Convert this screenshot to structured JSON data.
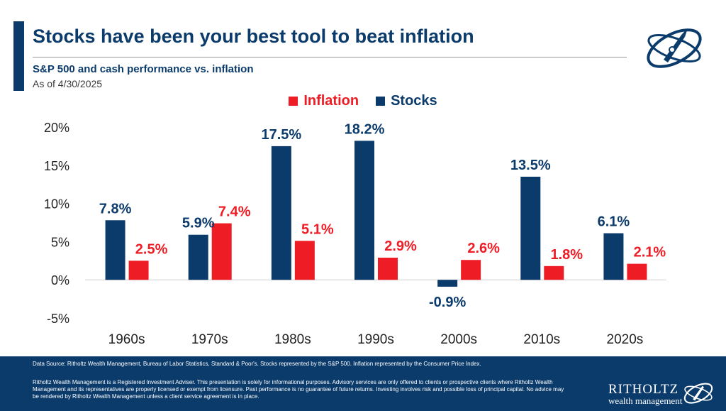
{
  "header": {
    "title": "Stocks have been your best tool to beat inflation",
    "subtitle": "S&P 500 and cash performance vs. inflation",
    "as_of": "As of 4/30/2025"
  },
  "colors": {
    "stocks": "#0b3b6b",
    "inflation": "#ee1c24",
    "navy": "#0b3b6b"
  },
  "chart_data": {
    "type": "bar",
    "categories": [
      "1960s",
      "1970s",
      "1980s",
      "1990s",
      "2000s",
      "2010s",
      "2020s"
    ],
    "series": [
      {
        "name": "Stocks",
        "values": [
          7.8,
          5.9,
          17.5,
          18.2,
          -0.9,
          13.5,
          6.1
        ],
        "labels": [
          "7.8%",
          "5.9%",
          "17.5%",
          "18.2%",
          "-0.9%",
          "13.5%",
          "6.1%"
        ]
      },
      {
        "name": "Inflation",
        "values": [
          2.5,
          7.4,
          5.1,
          2.9,
          2.6,
          1.8,
          2.1
        ],
        "labels": [
          "2.5%",
          "7.4%",
          "5.1%",
          "2.9%",
          "2.6%",
          "1.8%",
          "2.1%"
        ]
      }
    ],
    "legend": [
      "Inflation",
      "Stocks"
    ],
    "legend_position": "top-center",
    "ylim": [
      -5,
      20
    ],
    "yticks": [
      20,
      15,
      10,
      5,
      0,
      -5
    ],
    "ytick_labels": [
      "20%",
      "15%",
      "10%",
      "5%",
      "0%",
      "-5%"
    ],
    "grid": false
  },
  "footer": {
    "source": "Data Source: Ritholtz Wealth Management, Bureau of Labor Statistics, Standard & Poor's. Stocks represented by the S&P 500. Inflation represented by the Consumer Price Index.",
    "disclaimer": "Ritholtz Wealth Management is a Registered Investment Adviser. This presentation is solely for informational purposes. Advisory services are only offered to clients or prospective clients where Ritholtz Wealth Management and its representatives are properly licensed or exempt from licensure. Past performance is no guarantee of future returns. Investing involves risk and possible loss of principal capital. No advice may be rendered by Ritholtz Wealth Management unless a client service agreement is in place.",
    "brand_name": "RITHOLTZ",
    "brand_sub": "wealth management"
  }
}
